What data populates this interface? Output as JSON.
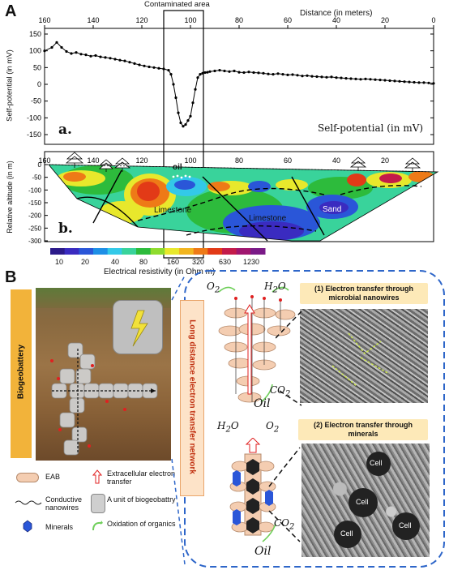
{
  "panelA": {
    "letter": "A",
    "contaminated_label": "Contaminated area",
    "distance_label": "Distance (in meters)",
    "top_x_ticks": [
      "160",
      "140",
      "120",
      "100",
      "80",
      "60",
      "40",
      "20",
      "0"
    ],
    "sp_y_ticks": [
      "150",
      "100",
      "50",
      "0",
      "-50",
      "-100",
      "-150"
    ],
    "sp_ylabel": "Self-potential (in mV)",
    "sp_sublabel": "a.",
    "sp_inner_title": "Self-potential (in mV)",
    "er_y_ticks": [
      "0",
      "-50",
      "-100",
      "-150",
      "-200",
      "-250",
      "-300"
    ],
    "er_ylabel": "Relative altitude (in m)",
    "er_sublabel": "b.",
    "er_x_ticks": [
      "160",
      "140",
      "120",
      "100",
      "80",
      "60",
      "40",
      "20"
    ],
    "labels": {
      "oil": "oil",
      "limestone1": "Limestone",
      "limestone2": "Limestone",
      "sand": "Sand"
    },
    "colorbar_ticks": [
      "10",
      "20",
      "40",
      "80",
      "160",
      "320",
      "630",
      "1230"
    ],
    "colorbar_title": "Electrical resistivity (in Ohm m)",
    "colorbar_colors": [
      "#2b1a8a",
      "#3a2bc0",
      "#2a56d8",
      "#1e8fe6",
      "#33c9e8",
      "#39d39b",
      "#2dbb3c",
      "#8fdc2e",
      "#e8e82c",
      "#f2b51f",
      "#ee7a17",
      "#e23a17",
      "#c41b4a",
      "#a0166f",
      "#7a1a87"
    ],
    "sp_series": {
      "x": [
        160,
        157,
        155,
        153,
        151,
        149,
        147,
        145,
        143,
        141,
        139,
        137,
        135,
        133,
        131,
        129,
        127,
        125,
        123,
        121,
        119,
        117,
        115,
        113,
        111,
        109,
        108,
        107,
        106,
        105,
        104,
        103,
        102,
        101,
        100,
        99,
        98,
        97,
        96,
        95,
        94,
        93,
        92,
        90,
        88,
        86,
        84,
        82,
        80,
        78,
        76,
        74,
        72,
        70,
        68,
        66,
        64,
        62,
        60,
        58,
        56,
        54,
        52,
        50,
        48,
        46,
        44,
        42,
        40,
        38,
        36,
        34,
        32,
        30,
        28,
        26,
        24,
        22,
        20,
        18,
        16,
        14,
        12,
        10,
        8,
        6,
        4,
        2,
        0
      ],
      "y": [
        100,
        110,
        125,
        110,
        98,
        92,
        95,
        90,
        88,
        84,
        86,
        82,
        80,
        78,
        75,
        72,
        70,
        66,
        62,
        58,
        55,
        52,
        50,
        48,
        46,
        42,
        30,
        0,
        -40,
        -85,
        -115,
        -125,
        -120,
        -108,
        -95,
        -55,
        -15,
        20,
        30,
        33,
        35,
        36,
        38,
        40,
        42,
        40,
        38,
        40,
        36,
        35,
        37,
        35,
        34,
        33,
        31,
        30,
        32,
        30,
        28,
        29,
        27,
        25,
        26,
        24,
        23,
        22,
        21,
        22,
        20,
        19,
        18,
        17,
        16,
        15,
        16,
        15,
        14,
        13,
        12,
        11,
        10,
        9,
        8,
        7,
        6,
        5,
        5,
        4,
        3
      ]
    }
  },
  "panelB": {
    "letter": "B",
    "biogeobattery_label": "Biogeobattery",
    "network_label": "Long distance electron transfer network",
    "legend": [
      {
        "key": "eab",
        "label": "EAB"
      },
      {
        "key": "extracellular",
        "label": "Extracellular electron transfer"
      },
      {
        "key": "nanowires",
        "label": "Conductive nanowires"
      },
      {
        "key": "unit",
        "label": "A unit of biogeobattry"
      },
      {
        "key": "minerals",
        "label": "Minerals"
      },
      {
        "key": "oxidation",
        "label": "Oxidation of organics"
      }
    ],
    "box1_title": "(1) Electron transfer through microbial nanowires",
    "box2_title": "(2) Electron transfer through minerals",
    "diagram1": {
      "o2": "O",
      "o2_sub": "2",
      "h2o": "H",
      "h2o_sub": "2",
      "h2o_end": "O",
      "co2": "CO",
      "co2_sub": "2",
      "oil": "Oil"
    },
    "diagram2": {
      "h2o": "H",
      "h2o_sub": "2",
      "h2o_end": "O",
      "o2": "O",
      "o2_sub": "2",
      "co2": "CO",
      "co2_sub": "2",
      "oil": "Oil"
    },
    "cell_labels": [
      "Cell",
      "Cell",
      "Cell",
      "Cell"
    ]
  }
}
